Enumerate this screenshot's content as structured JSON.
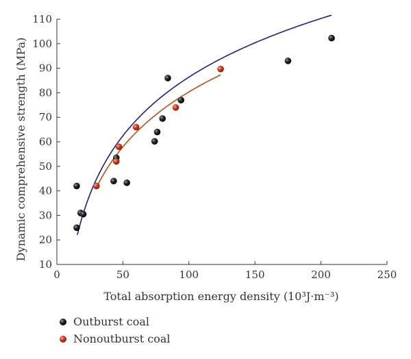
{
  "chart_data": {
    "type": "scatter",
    "xlabel": "Total absorption energy density (10³J·m⁻³)",
    "ylabel": "Dynamic comprehensive strength (MPa)",
    "xlim": [
      0,
      250
    ],
    "ylim": [
      10,
      110
    ],
    "x_ticks": [
      "0",
      "50",
      "100",
      "150",
      "200",
      "250"
    ],
    "y_ticks": [
      "10",
      "20",
      "30",
      "40",
      "50",
      "60",
      "70",
      "80",
      "90",
      "100",
      "110"
    ],
    "grid": false,
    "legend_position": "bottom-left",
    "series": [
      {
        "name": "Outburst coal",
        "color": "#1a1a1a",
        "curve_color": "#1e1e8a",
        "points": [
          {
            "x": 15,
            "y": 42
          },
          {
            "x": 15,
            "y": 25
          },
          {
            "x": 18,
            "y": 31
          },
          {
            "x": 20,
            "y": 30.5
          },
          {
            "x": 43,
            "y": 44
          },
          {
            "x": 45,
            "y": 53.5
          },
          {
            "x": 53,
            "y": 43.3
          },
          {
            "x": 74,
            "y": 60.2
          },
          {
            "x": 76,
            "y": 64
          },
          {
            "x": 80,
            "y": 69.5
          },
          {
            "x": 84,
            "y": 86
          },
          {
            "x": 94,
            "y": 77
          },
          {
            "x": 175,
            "y": 93
          },
          {
            "x": 208,
            "y": 102.3
          }
        ],
        "fit": {
          "a": 34.5,
          "b": -72.5,
          "x_range": [
            15.5,
            208
          ]
        }
      },
      {
        "name": "Nonoutburst coal",
        "color": "#c8371f",
        "curve_color": "#c04a1a",
        "points": [
          {
            "x": 30,
            "y": 42
          },
          {
            "x": 45,
            "y": 52
          },
          {
            "x": 47,
            "y": 58
          },
          {
            "x": 60,
            "y": 66
          },
          {
            "x": 90,
            "y": 74
          },
          {
            "x": 124,
            "y": 89.7
          }
        ],
        "fit": {
          "a": 32.3,
          "b": -68.4,
          "x_range": [
            30,
            124
          ]
        }
      }
    ]
  }
}
